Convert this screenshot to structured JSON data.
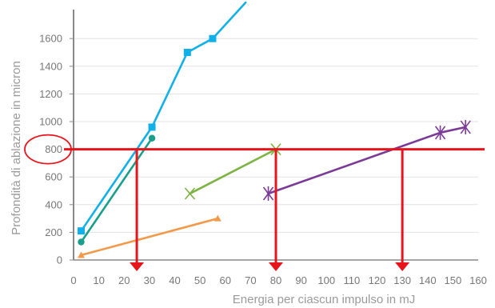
{
  "chart_data": {
    "type": "line",
    "xlabel": "Energia per ciascun impulso in mJ",
    "ylabel": "Profondità di ablazione in micron",
    "xlim": [
      0,
      160
    ],
    "ylim": [
      0,
      1800
    ],
    "x_ticks": [
      0,
      10,
      20,
      30,
      40,
      50,
      60,
      70,
      80,
      90,
      100,
      110,
      120,
      130,
      140,
      150,
      160
    ],
    "y_ticks": [
      0,
      200,
      400,
      600,
      800,
      1000,
      1200,
      1400,
      1600
    ],
    "grid": "horizontal",
    "series": [
      {
        "color": "#12b0e8",
        "marker": "square",
        "points": [
          [
            3,
            210
          ],
          [
            31,
            960
          ],
          [
            45,
            1500
          ],
          [
            55,
            1600
          ],
          [
            68,
            1860
          ]
        ],
        "markers": [
          0,
          1,
          2,
          3
        ]
      },
      {
        "color": "#1a9e8c",
        "marker": "circle",
        "points": [
          [
            3,
            130
          ],
          [
            31,
            880
          ]
        ],
        "markers": [
          0,
          1
        ]
      },
      {
        "color": "#f2994a",
        "marker": "triangle",
        "points": [
          [
            3,
            35
          ],
          [
            57,
            300
          ]
        ],
        "markers": [
          0,
          1
        ]
      },
      {
        "color": "#7cb342",
        "marker": "x",
        "points": [
          [
            46,
            480
          ],
          [
            80,
            800
          ]
        ],
        "markers": [
          0,
          1
        ]
      },
      {
        "color": "#7b3a96",
        "marker": "star",
        "points": [
          [
            77,
            480
          ],
          [
            145,
            920
          ],
          [
            155,
            960
          ]
        ],
        "markers": [
          0,
          1,
          2
        ]
      }
    ],
    "reference": {
      "color": "#e8141c",
      "y": 800,
      "x_values": [
        25,
        80,
        130
      ],
      "highlight_tick": 800
    }
  }
}
